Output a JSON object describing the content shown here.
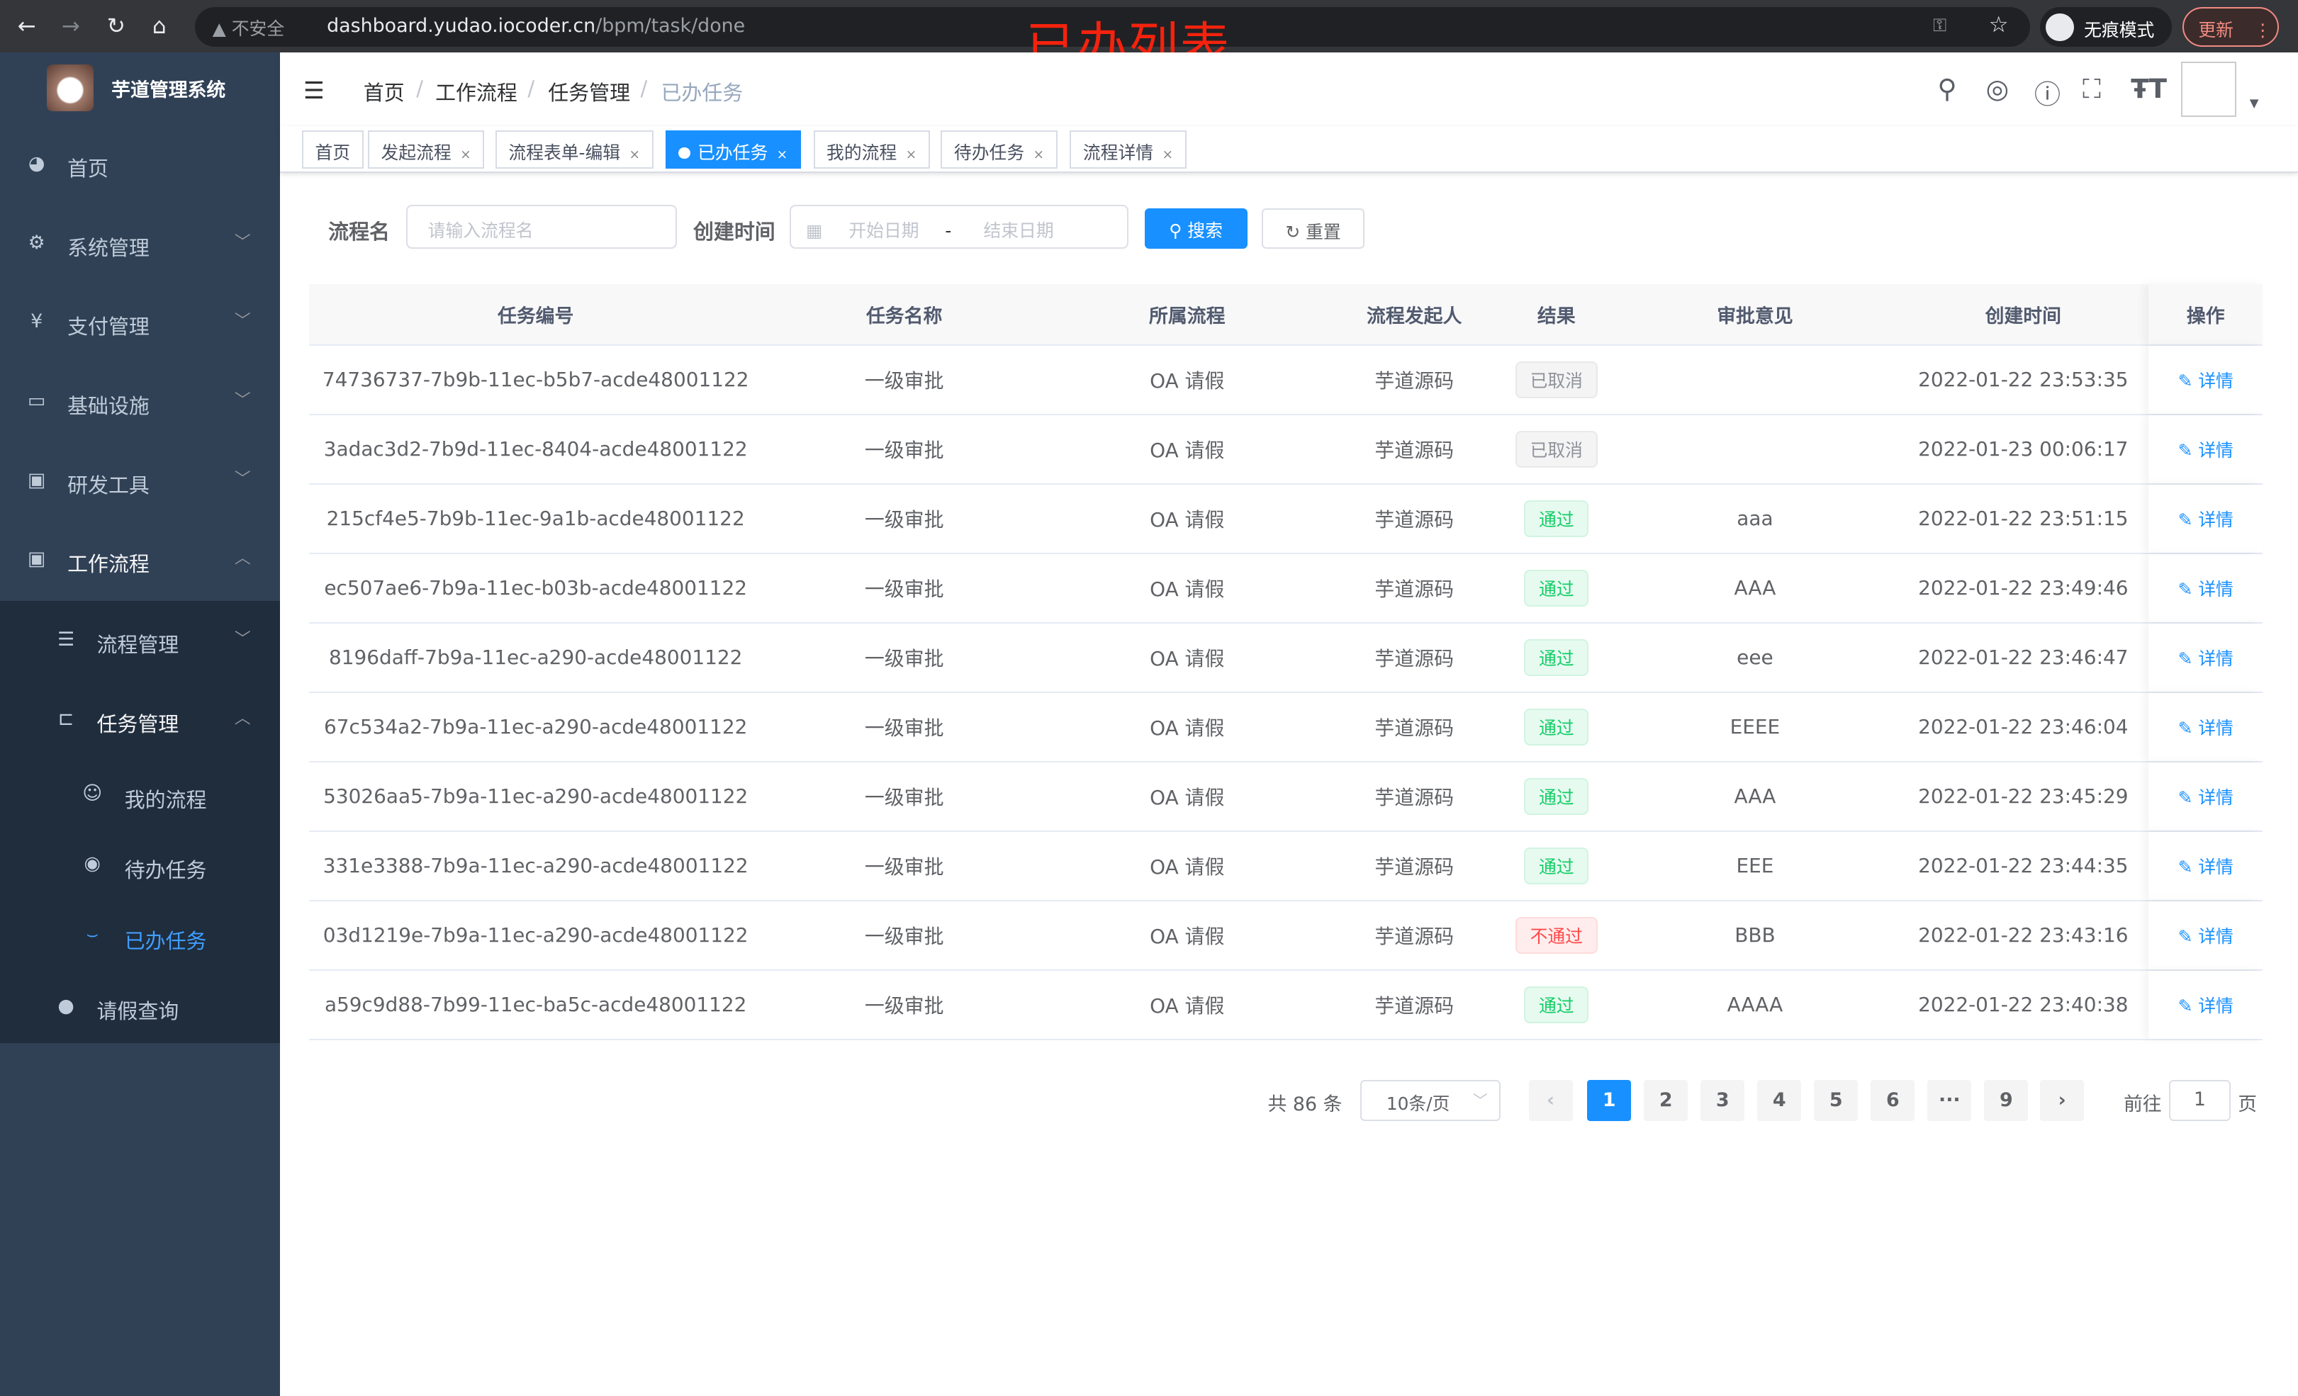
{
  "browser": {
    "security_label": "不安全",
    "url_host": "dashboard.yudao.iocoder.cn",
    "url_path": "/bpm/task/done",
    "incognito_label": "无痕模式",
    "update_label": "更新"
  },
  "annotation": "已办列表",
  "app": {
    "title": "芋道管理系统"
  },
  "sidebar": {
    "items": [
      {
        "label": "首页",
        "icon": "dashboard-icon"
      },
      {
        "label": "系统管理",
        "icon": "gear-icon"
      },
      {
        "label": "支付管理",
        "icon": "yen-icon"
      },
      {
        "label": "基础设施",
        "icon": "monitor-icon"
      },
      {
        "label": "研发工具",
        "icon": "toolbox-icon"
      },
      {
        "label": "工作流程",
        "icon": "toolbox-icon"
      }
    ],
    "sub": [
      {
        "label": "流程管理"
      },
      {
        "label": "任务管理"
      }
    ],
    "sub2": [
      {
        "label": "我的流程"
      },
      {
        "label": "待办任务"
      },
      {
        "label": "已办任务"
      }
    ],
    "leave": {
      "label": "请假查询"
    }
  },
  "breadcrumb": [
    "首页",
    "工作流程",
    "任务管理",
    "已办任务"
  ],
  "tags": [
    "首页",
    "发起流程",
    "流程表单-编辑",
    "已办任务",
    "我的流程",
    "待办任务",
    "流程详情"
  ],
  "filter": {
    "name_label": "流程名",
    "name_placeholder": "请输入流程名",
    "time_label": "创建时间",
    "start_placeholder": "开始日期",
    "range_sep": "-",
    "end_placeholder": "结束日期",
    "search_label": "搜索",
    "reset_label": "重置"
  },
  "table": {
    "headers": [
      "任务编号",
      "任务名称",
      "所属流程",
      "流程发起人",
      "结果",
      "审批意见",
      "创建时间",
      "操作"
    ],
    "action_label": "详情",
    "rows": [
      {
        "id": "74736737-7b9b-11ec-b5b7-acde48001122",
        "name": "一级审批",
        "process": "OA 请假",
        "starter": "芋道源码",
        "result": "已取消",
        "status": "cancel",
        "comment": "",
        "time": "2022-01-22 23:53:35"
      },
      {
        "id": "3adac3d2-7b9d-11ec-8404-acde48001122",
        "name": "一级审批",
        "process": "OA 请假",
        "starter": "芋道源码",
        "result": "已取消",
        "status": "cancel",
        "comment": "",
        "time": "2022-01-23 00:06:17"
      },
      {
        "id": "215cf4e5-7b9b-11ec-9a1b-acde48001122",
        "name": "一级审批",
        "process": "OA 请假",
        "starter": "芋道源码",
        "result": "通过",
        "status": "ok",
        "comment": "aaa",
        "time": "2022-01-22 23:51:15"
      },
      {
        "id": "ec507ae6-7b9a-11ec-b03b-acde48001122",
        "name": "一级审批",
        "process": "OA 请假",
        "starter": "芋道源码",
        "result": "通过",
        "status": "ok",
        "comment": "AAA",
        "time": "2022-01-22 23:49:46"
      },
      {
        "id": "8196daff-7b9a-11ec-a290-acde48001122",
        "name": "一级审批",
        "process": "OA 请假",
        "starter": "芋道源码",
        "result": "通过",
        "status": "ok",
        "comment": "eee",
        "time": "2022-01-22 23:46:47"
      },
      {
        "id": "67c534a2-7b9a-11ec-a290-acde48001122",
        "name": "一级审批",
        "process": "OA 请假",
        "starter": "芋道源码",
        "result": "通过",
        "status": "ok",
        "comment": "EEEE",
        "time": "2022-01-22 23:46:04"
      },
      {
        "id": "53026aa5-7b9a-11ec-a290-acde48001122",
        "name": "一级审批",
        "process": "OA 请假",
        "starter": "芋道源码",
        "result": "通过",
        "status": "ok",
        "comment": "AAA",
        "time": "2022-01-22 23:45:29"
      },
      {
        "id": "331e3388-7b9a-11ec-a290-acde48001122",
        "name": "一级审批",
        "process": "OA 请假",
        "starter": "芋道源码",
        "result": "通过",
        "status": "ok",
        "comment": "EEE",
        "time": "2022-01-22 23:44:35"
      },
      {
        "id": "03d1219e-7b9a-11ec-a290-acde48001122",
        "name": "一级审批",
        "process": "OA 请假",
        "starter": "芋道源码",
        "result": "不通过",
        "status": "no",
        "comment": "BBB",
        "time": "2022-01-22 23:43:16"
      },
      {
        "id": "a59c9d88-7b99-11ec-ba5c-acde48001122",
        "name": "一级审批",
        "process": "OA 请假",
        "starter": "芋道源码",
        "result": "通过",
        "status": "ok",
        "comment": "AAAA",
        "time": "2022-01-22 23:40:38"
      }
    ]
  },
  "pagination": {
    "total_label": "共 86 条",
    "page_size": "10条/页",
    "pages": [
      "1",
      "2",
      "3",
      "4",
      "5",
      "6",
      "···",
      "9"
    ],
    "current": "1",
    "goto_label": "前往",
    "goto_value": "1",
    "page_suffix": "页"
  },
  "colors": {
    "primary": "#1890ff",
    "sidebar": "#304156",
    "success": "#13ce66",
    "danger": "#ff4949",
    "annotation": "#f5220d"
  }
}
